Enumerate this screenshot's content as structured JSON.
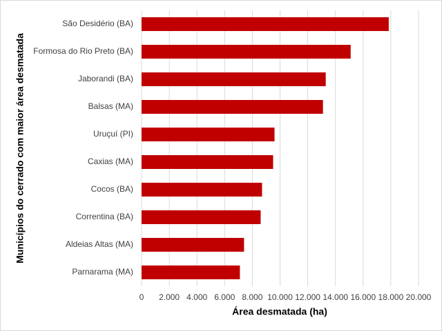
{
  "chart_data": {
    "type": "bar",
    "orientation": "horizontal",
    "x_label": "Área desmatada (ha)",
    "y_label": "Municípios do cerrado com maior área desmatada",
    "categories": [
      "São Desidério (BA)",
      "Formosa do Rio Preto (BA)",
      "Jaborandi (BA)",
      "Balsas (MA)",
      "Uruçuí (PI)",
      "Caxias (MA)",
      "Cocos (BA)",
      "Correntina (BA)",
      "Aldeias Altas (MA)",
      "Parnarama (MA)"
    ],
    "values": [
      17850,
      15100,
      13300,
      13100,
      9600,
      9500,
      8700,
      8600,
      7400,
      7100
    ],
    "color": "#c00000",
    "xlim": [
      0,
      20000
    ],
    "xticks": [
      0,
      {
        "value": 2000,
        "label": "2.000"
      },
      {
        "value": 4000,
        "label": "4.000"
      },
      {
        "value": 6000,
        "label": "6.000"
      },
      {
        "value": 8000,
        "label": "8.000"
      },
      {
        "value": 10000,
        "label": "10.000"
      },
      {
        "value": 12000,
        "label": "12.000"
      },
      {
        "value": 14000,
        "label": "14.000"
      },
      {
        "value": 16000,
        "label": "16.000"
      },
      {
        "value": 18000,
        "label": "18.000"
      },
      {
        "value": 20000,
        "label": "20.000"
      }
    ],
    "grid": true
  }
}
